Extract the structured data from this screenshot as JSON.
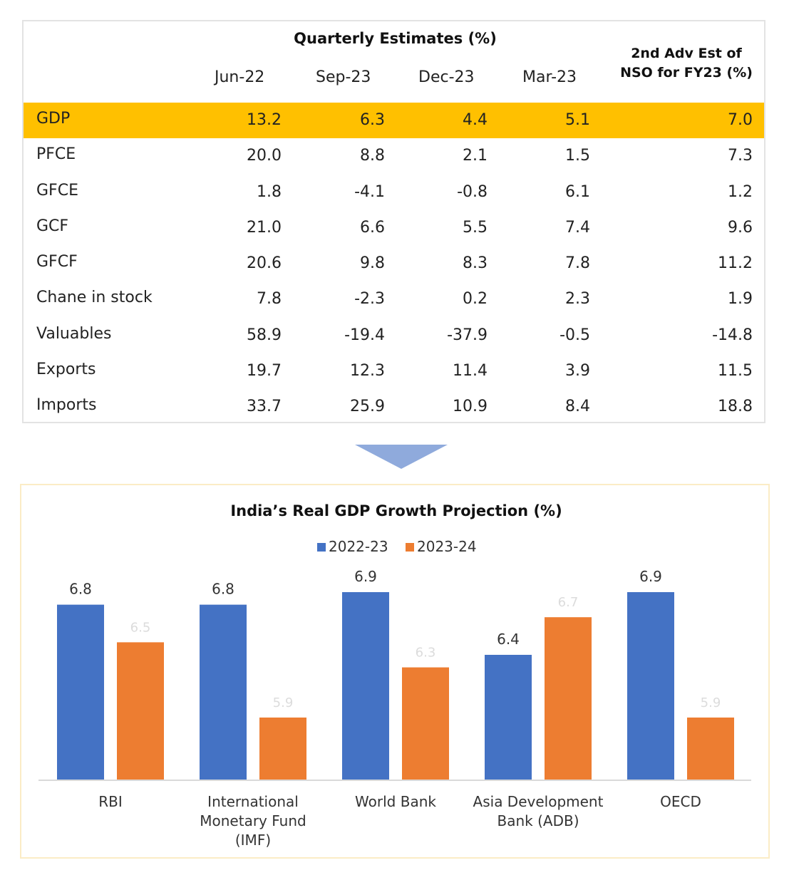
{
  "table": {
    "title": "Quarterly Estimates (%)",
    "nso_header_line1": "2nd Adv Est of",
    "nso_header_line2": "NSO for FY23 (%)",
    "columns": [
      "Jun-22",
      "Sep-23",
      "Dec-23",
      "Mar-23"
    ],
    "highlight_color": "#ffc000",
    "rows": [
      {
        "label": "GDP",
        "values": [
          "13.2",
          "6.3",
          "4.4",
          "5.1",
          "7.0"
        ]
      },
      {
        "label": "PFCE",
        "values": [
          "20.0",
          "8.8",
          "2.1",
          "1.5",
          "7.3"
        ]
      },
      {
        "label": "GFCE",
        "values": [
          "1.8",
          "-4.1",
          "-0.8",
          "6.1",
          "1.2"
        ]
      },
      {
        "label": "GCF",
        "values": [
          "21.0",
          "6.6",
          "5.5",
          "7.4",
          "9.6"
        ]
      },
      {
        "label": "GFCF",
        "values": [
          "20.6",
          "9.8",
          "8.3",
          "7.8",
          "11.2"
        ]
      },
      {
        "label": "Chane in stock",
        "values": [
          "7.8",
          "-2.3",
          "0.2",
          "2.3",
          "1.9"
        ]
      },
      {
        "label": "Valuables",
        "values": [
          "58.9",
          "-19.4",
          "-37.9",
          "-0.5",
          "-14.8"
        ]
      },
      {
        "label": "Exports",
        "values": [
          "19.7",
          "12.3",
          "11.4",
          "3.9",
          "11.5"
        ]
      },
      {
        "label": "Imports",
        "values": [
          "33.7",
          "25.9",
          "10.9",
          "8.4",
          "18.8"
        ]
      }
    ]
  },
  "arrow": {
    "icon": "down-triangle-icon",
    "color": "#8faadc"
  },
  "chart_data": {
    "type": "bar",
    "title": "India’s Real GDP Growth Projection (%)",
    "categories": [
      [
        "RBI"
      ],
      [
        "International",
        "Monetary Fund",
        "(IMF)"
      ],
      [
        "World Bank"
      ],
      [
        "Asia Development",
        "Bank (ADB)"
      ],
      [
        "OECD"
      ]
    ],
    "series": [
      {
        "name": "2022-23",
        "color": "#4472c4",
        "values": [
          6.8,
          6.8,
          6.9,
          6.4,
          6.9
        ]
      },
      {
        "name": "2023-24",
        "color": "#ed7d31",
        "values": [
          6.5,
          5.9,
          6.3,
          6.7,
          5.9
        ]
      }
    ],
    "ylim": [
      5.4,
      6.9
    ],
    "legend_position": "top-center",
    "grid": false
  }
}
